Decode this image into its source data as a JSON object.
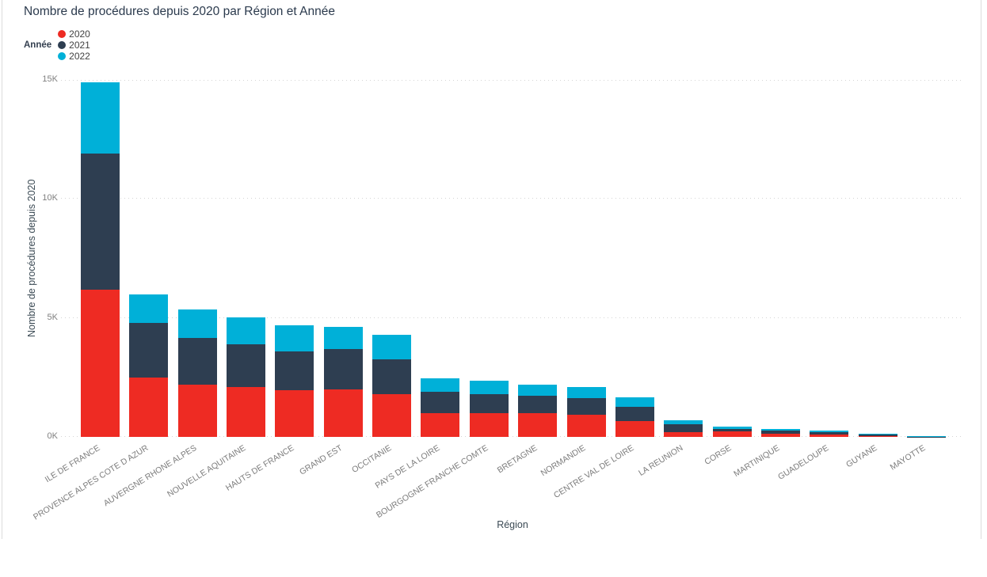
{
  "chart_data": {
    "type": "bar",
    "stacked": true,
    "title": "Nombre de procédures depuis 2020 par Région et Année",
    "legend_title": "Année",
    "legend_position": "top-left",
    "xlabel": "Région",
    "ylabel": "Nombre de procédures depuis 2020",
    "ylim": [
      0,
      15000
    ],
    "yticks": [
      {
        "value": 0,
        "label": "0K"
      },
      {
        "value": 5000,
        "label": "5K"
      },
      {
        "value": 10000,
        "label": "10K"
      },
      {
        "value": 15000,
        "label": "15K"
      }
    ],
    "grid": "horizontal-dotted",
    "categories": [
      "ILE DE FRANCE",
      "PROVENCE ALPES COTE D AZUR",
      "AUVERGNE RHONE ALPES",
      "NOUVELLE AQUITAINE",
      "HAUTS DE FRANCE",
      "GRAND EST",
      "OCCITANIE",
      "PAYS DE LA LOIRE",
      "BOURGOGNE FRANCHE COMTE",
      "BRETAGNE",
      "NORMANDIE",
      "CENTRE VAL DE LOIRE",
      "LA REUNION",
      "CORSE",
      "MARTINIQUE",
      "GUADELOUPE",
      "GUYANE",
      "MAYOTTE"
    ],
    "series": [
      {
        "name": "2020",
        "color": "#EE2B23",
        "values": [
          6200,
          2500,
          2200,
          2100,
          1950,
          2000,
          1800,
          1000,
          1000,
          1000,
          930,
          650,
          210,
          220,
          130,
          110,
          40,
          5
        ]
      },
      {
        "name": "2021",
        "color": "#2E3E51",
        "values": [
          5700,
          2300,
          1950,
          1800,
          1650,
          1700,
          1450,
          900,
          800,
          730,
          700,
          600,
          320,
          120,
          130,
          90,
          50,
          5
        ]
      },
      {
        "name": "2022",
        "color": "#00B0D8",
        "values": [
          3000,
          1200,
          1200,
          1130,
          1100,
          930,
          1030,
          550,
          550,
          480,
          460,
          420,
          170,
          80,
          70,
          60,
          30,
          20
        ]
      }
    ]
  },
  "colors": {
    "grid": "#D4D4D4",
    "axis_tick_text": "#808080",
    "category_text": "#7B7B7B",
    "title_text": "#2B3A4D",
    "axis_title_text": "#3B4A54",
    "pane_border": "#DCDCDC"
  }
}
